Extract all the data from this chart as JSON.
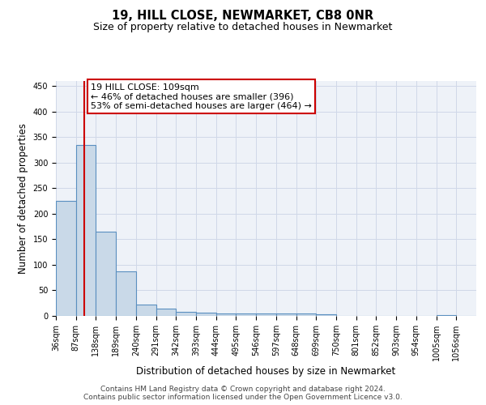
{
  "title": "19, HILL CLOSE, NEWMARKET, CB8 0NR",
  "subtitle": "Size of property relative to detached houses in Newmarket",
  "xlabel": "Distribution of detached houses by size in Newmarket",
  "ylabel": "Number of detached properties",
  "bar_edges": [
    36,
    87,
    138,
    189,
    240,
    291,
    342,
    393,
    444,
    495,
    546,
    597,
    648,
    699,
    750,
    801,
    852,
    903,
    954,
    1005,
    1056
  ],
  "bar_heights": [
    225,
    335,
    165,
    88,
    22,
    15,
    8,
    7,
    5,
    4,
    4,
    4,
    4,
    3,
    0,
    0,
    0,
    0,
    0,
    2,
    0
  ],
  "bar_color": "#c9d9e8",
  "bar_edge_color": "#5a8fc0",
  "bar_linewidth": 0.8,
  "property_line_x": 109,
  "property_line_color": "#cc0000",
  "annotation_text": "19 HILL CLOSE: 109sqm\n← 46% of detached houses are smaller (396)\n53% of semi-detached houses are larger (464) →",
  "annotation_box_color": "#ffffff",
  "annotation_box_edge_color": "#cc0000",
  "annotation_fontsize": 8,
  "ylim": [
    0,
    460
  ],
  "yticks": [
    0,
    50,
    100,
    150,
    200,
    250,
    300,
    350,
    400,
    450
  ],
  "grid_color": "#d0d8e8",
  "background_color": "#eef2f8",
  "title_fontsize": 10.5,
  "subtitle_fontsize": 9,
  "xlabel_fontsize": 8.5,
  "ylabel_fontsize": 8.5,
  "tick_fontsize": 7,
  "footer_line1": "Contains HM Land Registry data © Crown copyright and database right 2024.",
  "footer_line2": "Contains public sector information licensed under the Open Government Licence v3.0.",
  "footer_fontsize": 6.5
}
